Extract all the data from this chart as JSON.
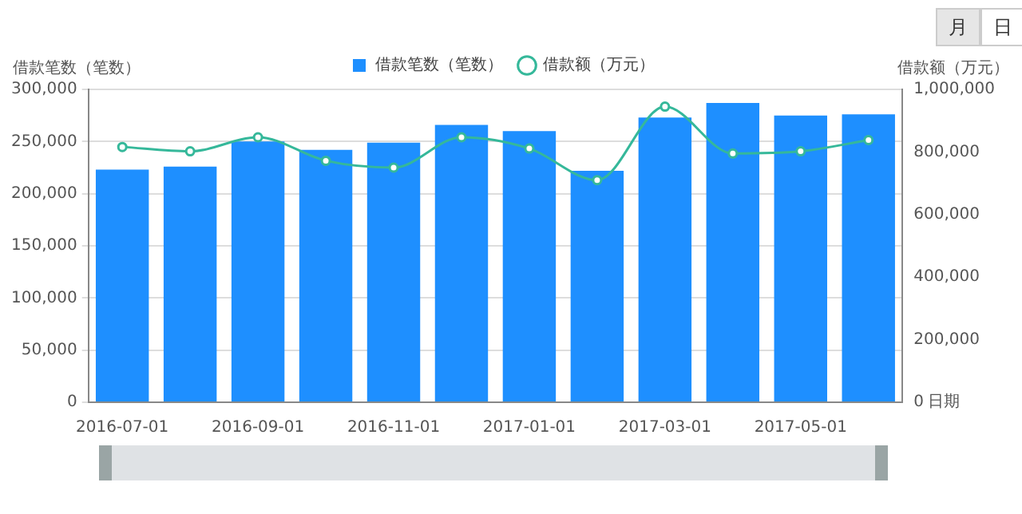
{
  "chart_data": {
    "type": "bar",
    "xlabel": "日期",
    "ylabel": "借款笔数（笔数）",
    "y2label": "借款额（万元）",
    "categories": [
      "2016-07-01",
      null,
      "2016-09-01",
      null,
      "2016-11-01",
      null,
      "2017-01-01",
      null,
      "2017-03-01",
      null,
      "2017-05-01",
      null
    ],
    "series": [
      {
        "name": "借款笔数（笔数）",
        "color": "#1e8fff",
        "values": [
          223000,
          226000,
          250000,
          242000,
          249000,
          266000,
          260000,
          222000,
          273000,
          287000,
          275000,
          276000
        ]
      },
      {
        "name": "借款额（万元）",
        "type": "line",
        "axis": "y2",
        "color": "#35b89a",
        "values": [
          816000,
          802000,
          847000,
          772000,
          750000,
          847000,
          811000,
          710000,
          945000,
          795000,
          802000,
          838000
        ]
      }
    ],
    "ylim": [
      0,
      300000
    ],
    "yticks": [
      {
        "value": 0,
        "label": "0"
      },
      {
        "value": 50000,
        "label": "50,000"
      },
      {
        "value": 100000,
        "label": "100,000"
      },
      {
        "value": 150000,
        "label": "150,000"
      },
      {
        "value": 200000,
        "label": "200,000"
      },
      {
        "value": 250000,
        "label": "250,000"
      },
      {
        "value": 300000,
        "label": "300,000"
      }
    ],
    "y2lim": [
      0,
      1000000
    ],
    "y2ticks": [
      {
        "value": 0,
        "label": "0"
      },
      {
        "value": 200000,
        "label": "200,000"
      },
      {
        "value": 400000,
        "label": "400,000"
      },
      {
        "value": 600000,
        "label": "600,000"
      },
      {
        "value": 800000,
        "label": "800,000"
      },
      {
        "value": 1000000,
        "label": "1,000,000"
      }
    ],
    "annotations": [
      "月",
      "日"
    ],
    "grid": "y",
    "legend": "top",
    "marker": "circle",
    "line_style": "solid"
  }
}
